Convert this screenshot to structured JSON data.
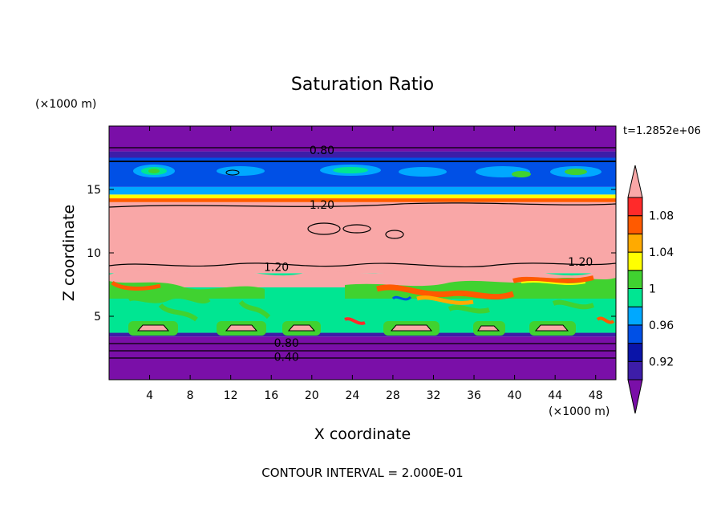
{
  "chart_data": {
    "type": "heatmap",
    "title": "Saturation Ratio",
    "xlabel": "X coordinate",
    "ylabel": "Z coordinate",
    "x_unit": "(×1000 m)",
    "y_unit": "(×1000 m)",
    "xlim": [
      0,
      50
    ],
    "ylim": [
      0,
      20
    ],
    "x_ticks": [
      4,
      8,
      12,
      16,
      20,
      24,
      28,
      32,
      36,
      40,
      44,
      48
    ],
    "y_ticks": [
      5,
      10,
      15
    ],
    "time_label": "t=1.2852e+06",
    "footer": "CONTOUR INTERVAL = 2.000E-01",
    "colorbar": {
      "levels": [
        0.9,
        0.92,
        0.94,
        0.96,
        0.98,
        1.0,
        1.02,
        1.04,
        1.06,
        1.08,
        1.1
      ],
      "tick_labels": [
        "0.92",
        "0.96",
        "1",
        "1.04",
        "1.08"
      ],
      "colors": [
        "#7a0fa8",
        "#3d1da8",
        "#0a14a8",
        "#0050e6",
        "#00a8ff",
        "#00e692",
        "#40d230",
        "#ffff00",
        "#ffaa00",
        "#ff5a00",
        "#ff2a2a",
        "#f9a7a7"
      ]
    },
    "contour_labels": [
      {
        "value": "0.80",
        "x": 21,
        "z": 18.1
      },
      {
        "value": "1.20",
        "x": 21,
        "z": 13.8
      },
      {
        "value": "1.20",
        "x": 16.5,
        "z": 8.9
      },
      {
        "value": "1.20",
        "x": 46.5,
        "z": 9.3
      },
      {
        "value": "0.80",
        "x": 17.5,
        "z": 2.9
      },
      {
        "value": "0.40",
        "x": 17.5,
        "z": 1.8
      }
    ],
    "bands": [
      {
        "z": [
          0,
          3.4
        ],
        "color": "#7a0fa8"
      },
      {
        "z": [
          3.4,
          3.7
        ],
        "color": "#3d1da8"
      },
      {
        "z": [
          3.7,
          8.4
        ],
        "color": "#00e692"
      },
      {
        "z": [
          8.4,
          14.0
        ],
        "color": "#f9a7a7"
      },
      {
        "z": [
          14.0,
          14.3
        ],
        "color": "#ff5a00"
      },
      {
        "z": [
          14.3,
          14.6
        ],
        "color": "#ffff00"
      },
      {
        "z": [
          14.6,
          15.2
        ],
        "color": "#00a8ff"
      },
      {
        "z": [
          15.2,
          17.5
        ],
        "color": "#0050e6"
      },
      {
        "z": [
          17.5,
          18.0
        ],
        "color": "#3d1da8"
      },
      {
        "z": [
          18.0,
          20.0
        ],
        "color": "#7a0fa8"
      }
    ]
  }
}
